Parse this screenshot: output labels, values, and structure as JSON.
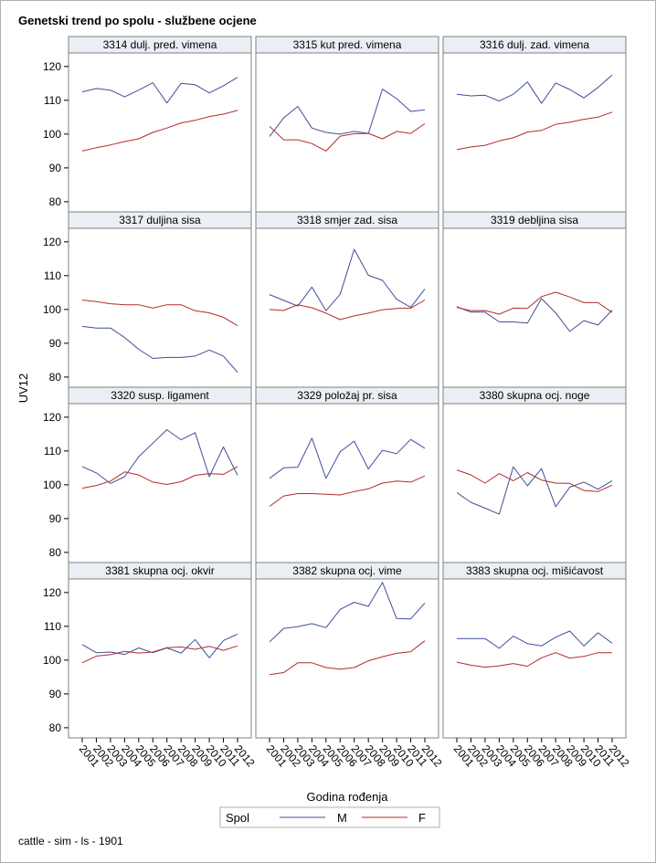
{
  "chart_data": {
    "type": "line",
    "title": "Genetski trend po spolu - službene ocjene",
    "xlabel": "Godina rođenja",
    "ylabel": "UV12",
    "ylim": [
      77,
      124
    ],
    "yticks": [
      80,
      90,
      100,
      110,
      120
    ],
    "x": [
      "2001",
      "2002",
      "2003",
      "2004",
      "2005",
      "2006",
      "2007",
      "2008",
      "2009",
      "2010",
      "2011",
      "2012"
    ],
    "legend": {
      "title": "Spol",
      "position": "bottom-center",
      "entries": [
        "M",
        "F"
      ]
    },
    "footnote": "cattle - sim - ls - 1901",
    "colors": {
      "M": "#3f4f9a",
      "F": "#b22b2b",
      "frame": "#808080",
      "panel_header": "#eaeef5"
    },
    "panels": [
      {
        "title": "3314 dulj. pred. vimena",
        "series": [
          {
            "name": "M",
            "values": [
              112.5,
              113.5,
              113.0,
              111.0,
              113.0,
              115.2,
              109.2,
              115.0,
              114.6,
              112.2,
              114.3,
              116.8
            ]
          },
          {
            "name": "F",
            "values": [
              95.0,
              96.0,
              96.8,
              97.8,
              98.6,
              100.5,
              101.8,
              103.3,
              104.1,
              105.2,
              105.9,
              107.0
            ]
          }
        ]
      },
      {
        "title": "3315 kut pred. vimena",
        "series": [
          {
            "name": "M",
            "values": [
              99.3,
              104.8,
              108.2,
              101.8,
              100.5,
              100.0,
              100.8,
              100.2,
              113.3,
              110.5,
              106.7,
              107.2
            ]
          },
          {
            "name": "F",
            "values": [
              102.3,
              98.3,
              98.3,
              97.2,
              95.0,
              99.4,
              100.1,
              100.2,
              98.6,
              100.8,
              100.2,
              103.1
            ]
          }
        ]
      },
      {
        "title": "3316 dulj. zad. vimena",
        "series": [
          {
            "name": "M",
            "values": [
              111.8,
              111.3,
              111.5,
              109.8,
              111.8,
              115.4,
              109.1,
              115.1,
              113.2,
              110.7,
              113.8,
              117.5
            ]
          },
          {
            "name": "F",
            "values": [
              95.4,
              96.2,
              96.7,
              98.0,
              98.9,
              100.6,
              101.1,
              102.9,
              103.5,
              104.4,
              105.0,
              106.5
            ]
          }
        ]
      },
      {
        "title": "3317 duljina sisa",
        "series": [
          {
            "name": "M",
            "values": [
              95.0,
              94.5,
              94.5,
              91.7,
              88.2,
              85.5,
              85.8,
              85.8,
              86.2,
              88.0,
              86.2,
              81.4
            ]
          },
          {
            "name": "F",
            "values": [
              102.8,
              102.3,
              101.7,
              101.4,
              101.4,
              100.4,
              101.4,
              101.4,
              99.6,
              99.0,
              97.7,
              95.2
            ]
          }
        ]
      },
      {
        "title": "3318 smjer zad. sisa",
        "series": [
          {
            "name": "M",
            "values": [
              104.4,
              102.7,
              101.0,
              106.6,
              99.6,
              104.5,
              117.8,
              110.1,
              108.6,
              103.0,
              100.6,
              106.0
            ]
          },
          {
            "name": "F",
            "values": [
              100.0,
              99.7,
              101.4,
              100.5,
              98.9,
              97.0,
              98.1,
              98.9,
              99.9,
              100.3,
              100.4,
              102.8
            ]
          }
        ]
      },
      {
        "title": "3319 debljina sisa",
        "series": [
          {
            "name": "M",
            "values": [
              100.8,
              99.2,
              99.2,
              96.3,
              96.3,
              96.0,
              103.2,
              99.0,
              93.5,
              96.7,
              95.4,
              99.8
            ]
          },
          {
            "name": "F",
            "values": [
              100.6,
              99.6,
              99.7,
              98.6,
              100.4,
              100.3,
              103.8,
              105.1,
              103.7,
              102.0,
              102.0,
              99.1
            ]
          }
        ]
      },
      {
        "title": "3320 susp. ligament",
        "series": [
          {
            "name": "M",
            "values": [
              105.4,
              103.5,
              100.4,
              102.4,
              108.3,
              112.3,
              116.3,
              113.3,
              115.4,
              102.4,
              111.2,
              102.8
            ]
          },
          {
            "name": "F",
            "values": [
              99.0,
              99.8,
              101.1,
              103.8,
              102.9,
              100.8,
              100.1,
              100.9,
              102.8,
              103.3,
              103.1,
              105.4
            ]
          }
        ]
      },
      {
        "title": "3329 položaj pr. sisa",
        "series": [
          {
            "name": "M",
            "values": [
              101.9,
              105.0,
              105.2,
              113.8,
              101.9,
              109.8,
              112.9,
              104.7,
              110.2,
              109.2,
              113.4,
              110.8
            ]
          },
          {
            "name": "F",
            "values": [
              93.6,
              96.7,
              97.4,
              97.4,
              97.2,
              97.0,
              98.0,
              98.8,
              100.5,
              101.1,
              100.8,
              102.6
            ]
          }
        ]
      },
      {
        "title": "3380 skupna ocj. noge",
        "series": [
          {
            "name": "M",
            "values": [
              97.7,
              94.8,
              93.1,
              91.3,
              105.3,
              99.7,
              104.8,
              93.5,
              99.3,
              100.8,
              98.7,
              101.2
            ]
          },
          {
            "name": "F",
            "values": [
              104.4,
              102.9,
              100.5,
              103.3,
              101.2,
              103.6,
              101.4,
              100.5,
              100.4,
              98.3,
              98.0,
              99.9
            ]
          }
        ]
      },
      {
        "title": "3381 skupna ocj. okvir",
        "series": [
          {
            "name": "M",
            "values": [
              104.6,
              102.2,
              102.4,
              101.7,
              103.6,
              102.2,
              103.6,
              102.1,
              106.1,
              100.7,
              105.8,
              107.7
            ]
          },
          {
            "name": "F",
            "values": [
              99.2,
              101.2,
              101.6,
              102.6,
              102.1,
              102.4,
              103.7,
              103.9,
              103.2,
              104.1,
              102.9,
              104.2
            ]
          }
        ]
      },
      {
        "title": "3382 skupna ocj. vime",
        "series": [
          {
            "name": "M",
            "values": [
              105.4,
              109.4,
              109.9,
              110.8,
              109.6,
              115.0,
              117.1,
              115.9,
              123.0,
              112.3,
              112.2,
              116.9
            ]
          },
          {
            "name": "F",
            "values": [
              95.7,
              96.3,
              99.2,
              99.2,
              97.8,
              97.3,
              97.8,
              99.8,
              101.0,
              102.0,
              102.5,
              105.7
            ]
          }
        ]
      },
      {
        "title": "3383 skupna ocj. mišićavost",
        "series": [
          {
            "name": "M",
            "values": [
              106.4,
              106.4,
              106.4,
              103.5,
              107.1,
              104.9,
              104.2,
              106.8,
              108.6,
              104.2,
              108.1,
              105.0
            ]
          },
          {
            "name": "F",
            "values": [
              99.4,
              98.5,
              97.9,
              98.3,
              99.0,
              98.2,
              100.7,
              102.2,
              100.6,
              101.1,
              102.2,
              102.2
            ]
          }
        ]
      }
    ]
  }
}
